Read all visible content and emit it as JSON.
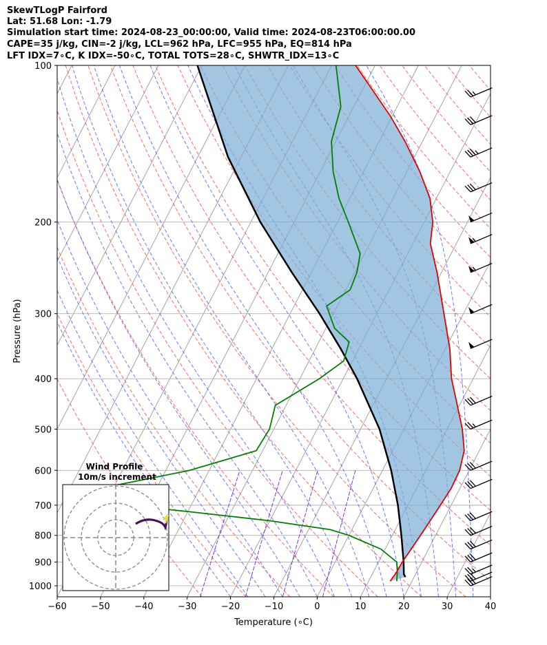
{
  "header": {
    "line1": "SkewTLogP Fairford",
    "line2": "Lat: 51.68   Lon: -1.79",
    "line3": "Simulation start time: 2024-08-23_00:00:00, Valid time: 2024-08-23T06:00:00.00",
    "line4": "CAPE=35 j/kg, CIN=-2 j/kg, LCL=962 hPa, LFC=955 hPa, EQ=814 hPa",
    "line5": "LFT IDX=7∘C, K IDX=-50∘C, TOTAL TOTS=28∘C, SHWTR_IDX=13∘C"
  },
  "chart_data": {
    "type": "line",
    "xlabel": "Temperature (∘C)",
    "ylabel": "Pressure (hPa)",
    "xlim": [
      -60,
      40
    ],
    "ylim": [
      1050,
      100
    ],
    "yscale": "log",
    "xticks": [
      -60,
      -50,
      -40,
      -30,
      -20,
      -10,
      0,
      10,
      20,
      30,
      40
    ],
    "yticks": [
      1000,
      900,
      800,
      700,
      600,
      500,
      400,
      300,
      200,
      100
    ],
    "colors": {
      "temperature": "#e00000",
      "dewpoint": "#008000",
      "parcel": "#000000",
      "cape_fill": "#7aaed6",
      "dry_adiabat": "#ff5555",
      "moist_adiabat": "#4455ff",
      "mixing_ratio": "#8833cc",
      "isotherm": "#999999"
    },
    "series": [
      {
        "key": "temperature",
        "pressure": [
          980,
          940,
          900,
          850,
          800,
          750,
          700,
          650,
          600,
          550,
          500,
          450,
          400,
          350,
          300,
          250,
          220,
          200,
          180,
          160,
          140,
          125,
          110,
          100
        ],
        "temp": [
          15,
          15.4,
          15.5,
          16,
          16.5,
          17,
          17.5,
          18,
          17.8,
          16.5,
          13.5,
          9.5,
          5,
          1,
          -4.5,
          -11,
          -16,
          -18,
          -21.5,
          -27,
          -34,
          -40.5,
          -48.5,
          -54.5
        ]
      },
      {
        "key": "dewpoint",
        "pressure": [
          980,
          940,
          900,
          850,
          800,
          780,
          750,
          720,
          700,
          650,
          600,
          550,
          500,
          450,
          400,
          370,
          340,
          320,
          290,
          270,
          250,
          230,
          200,
          180,
          160,
          140,
          120,
          100
        ],
        "temp": [
          16.5,
          15.5,
          14.2,
          9,
          0,
          -5,
          -20,
          -40,
          -55,
          -63,
          -44.5,
          -31.5,
          -31,
          -32.5,
          -25.5,
          -22,
          -23,
          -28,
          -32.5,
          -29,
          -29.5,
          -31,
          -37.5,
          -42.5,
          -47,
          -51,
          -53,
          -59
        ]
      },
      {
        "key": "parcel",
        "pressure": [
          962,
          950,
          900,
          800,
          700,
          600,
          500,
          400,
          350,
          300,
          250,
          200,
          150,
          100
        ],
        "temp": [
          18,
          17.3,
          15.8,
          12.1,
          7.7,
          2,
          -5.6,
          -16.8,
          -24.2,
          -33.2,
          -44.5,
          -57.8,
          -73,
          -91
        ]
      }
    ],
    "wind_barbs": [
      {
        "p": 1000,
        "speed": 30,
        "dir": 250
      },
      {
        "p": 980,
        "speed": 30,
        "dir": 250
      },
      {
        "p": 950,
        "speed": 25,
        "dir": 250
      },
      {
        "p": 900,
        "speed": 30,
        "dir": 250
      },
      {
        "p": 850,
        "speed": 30,
        "dir": 250
      },
      {
        "p": 800,
        "speed": 30,
        "dir": 250
      },
      {
        "p": 750,
        "speed": 30,
        "dir": 250
      },
      {
        "p": 650,
        "speed": 30,
        "dir": 250
      },
      {
        "p": 600,
        "speed": 30,
        "dir": 250
      },
      {
        "p": 500,
        "speed": 25,
        "dir": 250
      },
      {
        "p": 450,
        "speed": 30,
        "dir": 250
      },
      {
        "p": 350,
        "speed": 50,
        "dir": 250
      },
      {
        "p": 300,
        "speed": 50,
        "dir": 250
      },
      {
        "p": 250,
        "speed": 55,
        "dir": 250
      },
      {
        "p": 220,
        "speed": 55,
        "dir": 250
      },
      {
        "p": 200,
        "speed": 50,
        "dir": 250
      },
      {
        "p": 175,
        "speed": 30,
        "dir": 250
      },
      {
        "p": 150,
        "speed": 35,
        "dir": 250
      },
      {
        "p": 130,
        "speed": 30,
        "dir": 250
      },
      {
        "p": 115,
        "speed": 25,
        "dir": 250
      }
    ],
    "inset": {
      "title": "Wind Profile",
      "subtitle": "10m/s increment"
    }
  }
}
